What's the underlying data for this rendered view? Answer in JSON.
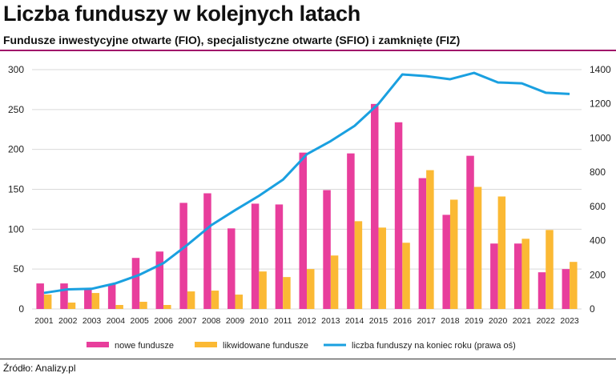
{
  "header": {
    "title": "Liczba funduszy w kolejnych latach",
    "subtitle": "Fundusze inwestycyjne otwarte (FIO), specjalistyczne otwarte (SFIO) i zamknięte (FIZ)"
  },
  "footer": {
    "source": "Źródło: Analizy.pl"
  },
  "colors": {
    "new": "#e83e9c",
    "liquidated": "#fbb934",
    "line": "#1aa0e0",
    "accent": "#a0156a"
  },
  "chart_data": {
    "type": "bar+line",
    "categories": [
      "2001",
      "2002",
      "2003",
      "2004",
      "2005",
      "2006",
      "2007",
      "2008",
      "2009",
      "2010",
      "2011",
      "2012",
      "2013",
      "2014",
      "2015",
      "2016",
      "2017",
      "2018",
      "2019",
      "2020",
      "2021",
      "2022",
      "2023"
    ],
    "series": [
      {
        "name": "nowe fundusze",
        "type": "bar",
        "axis": "left",
        "values": [
          32,
          32,
          26,
          31,
          64,
          72,
          133,
          145,
          101,
          132,
          131,
          196,
          149,
          195,
          257,
          234,
          164,
          118,
          192,
          82,
          82,
          46,
          50
        ]
      },
      {
        "name": "likwidowane fundusze",
        "type": "bar",
        "axis": "left",
        "values": [
          18,
          8,
          20,
          5,
          9,
          5,
          22,
          23,
          18,
          47,
          40,
          50,
          67,
          110,
          102,
          83,
          174,
          137,
          153,
          141,
          88,
          99,
          59
        ]
      },
      {
        "name": "liczba funduszy na koniec roku (prawa oś)",
        "type": "line",
        "axis": "right",
        "values": [
          94,
          115,
          118,
          150,
          200,
          268,
          375,
          490,
          578,
          662,
          756,
          905,
          982,
          1071,
          1200,
          1372,
          1362,
          1344,
          1381,
          1325,
          1320,
          1265,
          1258
        ]
      }
    ],
    "ylim_left": [
      0,
      300
    ],
    "yticks_left": [
      "0",
      "50",
      "100",
      "150",
      "200",
      "250",
      "300"
    ],
    "ylim_right": [
      0,
      1400
    ],
    "yticks_right": [
      "0",
      "200",
      "400",
      "600",
      "800",
      "1000",
      "1200",
      "1400"
    ],
    "grid": true,
    "legend": "bottom"
  }
}
